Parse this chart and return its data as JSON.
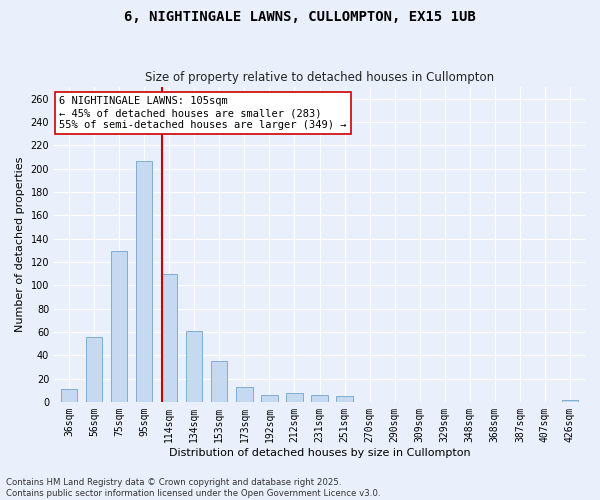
{
  "title_line1": "6, NIGHTINGALE LAWNS, CULLOMPTON, EX15 1UB",
  "title_line2": "Size of property relative to detached houses in Cullompton",
  "xlabel": "Distribution of detached houses by size in Cullompton",
  "ylabel": "Number of detached properties",
  "categories": [
    "36sqm",
    "56sqm",
    "75sqm",
    "95sqm",
    "114sqm",
    "134sqm",
    "153sqm",
    "173sqm",
    "192sqm",
    "212sqm",
    "231sqm",
    "251sqm",
    "270sqm",
    "290sqm",
    "309sqm",
    "329sqm",
    "348sqm",
    "368sqm",
    "387sqm",
    "407sqm",
    "426sqm"
  ],
  "values": [
    11,
    56,
    129,
    207,
    110,
    61,
    35,
    13,
    6,
    8,
    6,
    5,
    0,
    0,
    0,
    0,
    0,
    0,
    0,
    0,
    2
  ],
  "bar_color": "#c5d9f1",
  "bar_edge_color": "#7eadd4",
  "vline_index": 3.72,
  "annotation_text": "6 NIGHTINGALE LAWNS: 105sqm\n← 45% of detached houses are smaller (283)\n55% of semi-detached houses are larger (349) →",
  "vline_color": "#cc0000",
  "annotation_box_edge_color": "#cc0000",
  "ylim": [
    0,
    270
  ],
  "yticks": [
    0,
    20,
    40,
    60,
    80,
    100,
    120,
    140,
    160,
    180,
    200,
    220,
    240,
    260
  ],
  "footer_line1": "Contains HM Land Registry data © Crown copyright and database right 2025.",
  "footer_line2": "Contains public sector information licensed under the Open Government Licence v3.0.",
  "bg_color": "#eaf0fb",
  "plot_bg_color": "#eaf0fb",
  "grid_color": "#ffffff",
  "title1_fontsize": 10,
  "title2_fontsize": 8.5,
  "ylabel_fontsize": 8,
  "xlabel_fontsize": 8,
  "tick_fontsize": 7,
  "annot_fontsize": 7.5
}
